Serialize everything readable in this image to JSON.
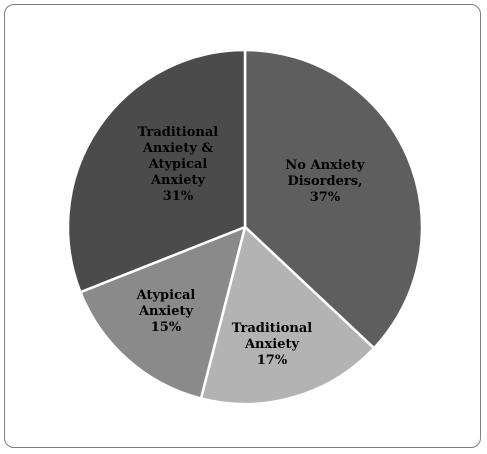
{
  "chart_data": {
    "type": "pie",
    "title": "",
    "slices": [
      {
        "label_lines": [
          "No Anxiety",
          "Disorders,",
          "37%"
        ],
        "value": 37,
        "color": "#5e5e5e"
      },
      {
        "label_lines": [
          "Traditional",
          "Anxiety",
          "17%"
        ],
        "value": 17,
        "color": "#b3b3b3"
      },
      {
        "label_lines": [
          "Atypical",
          "Anxiety",
          "15%"
        ],
        "value": 15,
        "color": "#8a8a8a"
      },
      {
        "label_lines": [
          "Traditional",
          "Anxiety &",
          "Atypical",
          "Anxiety",
          "31%"
        ],
        "value": 31,
        "color": "#4b4b4b"
      }
    ],
    "start_angle": "12 o'clock",
    "direction": "clockwise",
    "legend": "none",
    "slice_border_color": "#ffffff"
  }
}
